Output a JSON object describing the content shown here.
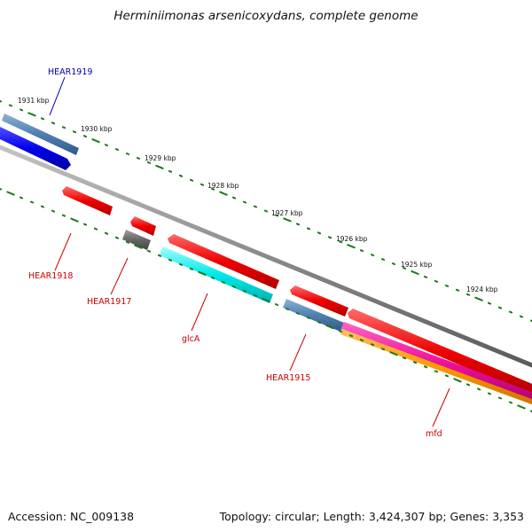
{
  "title": "Herminiimonas arsenicoxydans, complete genome",
  "footer": {
    "accession": "Accession: NC_009138",
    "summary": "Topology: circular; Length: 3,424,307 bp; Genes: 3,353"
  },
  "colors": {
    "backbone": "#888888",
    "tick": "#1a7a1a",
    "label_blue": "#0000aa",
    "label_red": "#cc0000",
    "steelblue": "#4f7fb0",
    "blue": "#0000ee",
    "red": "#ee0000",
    "gray": "#666666",
    "cyan": "#00e8e8",
    "magenta": "#ee1199",
    "orange": "#ff9900"
  },
  "kbp_labels": [
    "1931 kbp",
    "1930 kbp",
    "1929 kbp",
    "1928 kbp",
    "1927 kbp",
    "1926 kbp",
    "1925 kbp",
    "1924 kbp"
  ],
  "genes": [
    {
      "id": "HEAR1919",
      "label": "HEAR1919",
      "color": "blue"
    },
    {
      "id": "HEAR1918",
      "label": "HEAR1918",
      "color": "red"
    },
    {
      "id": "HEAR1917",
      "label": "HEAR1917",
      "color": "red"
    },
    {
      "id": "glcA",
      "label": "glcA",
      "color": "red"
    },
    {
      "id": "HEAR1915",
      "label": "HEAR1915",
      "color": "red"
    },
    {
      "id": "mfd",
      "label": "mfd",
      "color": "red"
    }
  ]
}
